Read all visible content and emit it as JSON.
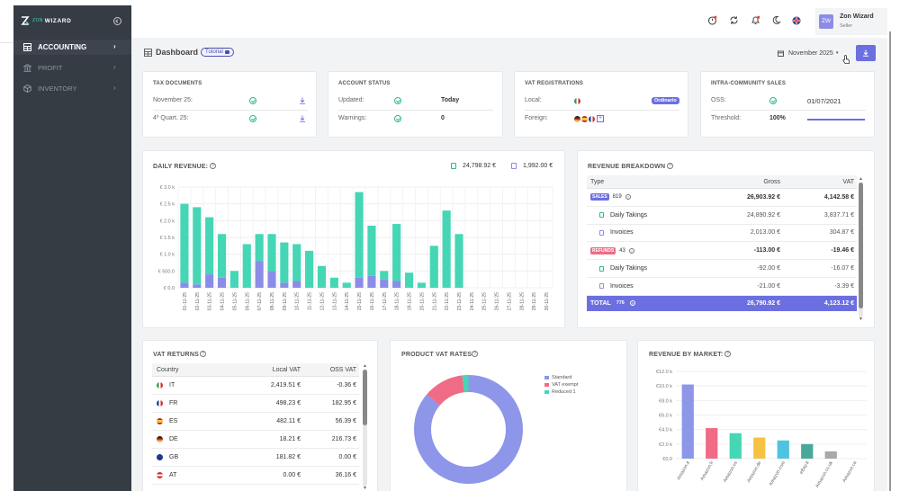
{
  "app": {
    "logo_text": "WIZARD",
    "logo_prefix": "ZON"
  },
  "sidebar": {
    "items": [
      {
        "label": "ACCOUNTING",
        "active": true
      },
      {
        "label": "PROFIT",
        "active": false
      },
      {
        "label": "INVENTORY",
        "active": false
      }
    ]
  },
  "header": {
    "user_initials": "ZW",
    "user_name": "Zon Wizard",
    "user_role": "Seller"
  },
  "page": {
    "title": "Dashboard",
    "tutorial": "Tutorial",
    "month": "November 2025"
  },
  "tax_documents": {
    "title": "TAX DOCUMENTS",
    "rows": [
      {
        "label": "November 25:"
      },
      {
        "label": "4º Quart. 25:"
      }
    ]
  },
  "account_status": {
    "title": "ACCOUNT STATUS",
    "rows": [
      {
        "label": "Updated:",
        "value": "Today"
      },
      {
        "label": "Warnings:",
        "value": "0"
      }
    ]
  },
  "vat_registrations": {
    "title": "VAT REGISTRATIONS",
    "local_label": "Local:",
    "local_badge": "Ordinario",
    "foreign_label": "Foreign:",
    "foreign_more": "+"
  },
  "intra_community": {
    "title": "INTRA-COMMUNITY SALES",
    "oss_label": "OSS:",
    "oss_value": "01/07/2021",
    "threshold_label": "Threshold:",
    "threshold_value": "100%",
    "threshold_fraction": 1.0
  },
  "daily_revenue": {
    "title": "DAILY REVENUE:",
    "total_label": "24,798.92 €",
    "invoices_label": "1,992.00 €",
    "colors": {
      "takings": "#45d6b5",
      "invoices": "#8b8ce8"
    }
  },
  "chart_data": [
    {
      "type": "bar",
      "title": "DAILY REVENUE:",
      "stacked": true,
      "categories": [
        "01-11-25",
        "02-11-25",
        "03-11-25",
        "04-11-25",
        "05-11-25",
        "06-11-25",
        "07-11-25",
        "08-11-25",
        "09-11-25",
        "10-11-25",
        "11-11-25",
        "12-11-25",
        "13-11-25",
        "14-11-25",
        "15-11-25",
        "16-11-25",
        "17-11-25",
        "18-11-25",
        "19-11-25",
        "20-11-25",
        "21-11-25",
        "22-11-25",
        "23-11-25",
        "24-11-25",
        "25-11-25",
        "26-11-25",
        "27-11-25",
        "28-11-25",
        "29-11-25",
        "30-11-25"
      ],
      "series": [
        {
          "name": "Invoices",
          "values": [
            150,
            100,
            400,
            300,
            0,
            0,
            800,
            500,
            150,
            200,
            0,
            0,
            0,
            0,
            300,
            350,
            250,
            200,
            0,
            0,
            0,
            0,
            0,
            0,
            0,
            0,
            0,
            0,
            0,
            0
          ]
        },
        {
          "name": "Daily Takings",
          "values": [
            2350,
            2300,
            1700,
            1300,
            500,
            1300,
            800,
            1100,
            1200,
            1100,
            1100,
            650,
            300,
            150,
            2550,
            1500,
            250,
            1700,
            450,
            150,
            1250,
            2300,
            1600,
            0,
            0,
            0,
            0,
            0,
            0,
            0
          ]
        }
      ],
      "y_ticks": [
        "€ 3.0 k",
        "€ 2.5 k",
        "€ 2.0 k",
        "€ 1.5 k",
        "€ 1.0 k",
        "€ 500.0",
        "€ 0.0"
      ],
      "ylim": [
        0,
        3000
      ]
    },
    {
      "type": "pie",
      "title": "PRODUCT VAT RATES",
      "categories": [
        "Standard",
        "VAT exempt",
        "Reduced 1"
      ],
      "values": [
        86,
        12,
        2
      ],
      "colors": [
        "#8d96e8",
        "#f06b85",
        "#45d6b5"
      ]
    },
    {
      "type": "bar",
      "title": "REVENUE BY MARKET:",
      "categories": [
        "Amazon.it",
        "Amazon.fr",
        "Amazon.es",
        "Amazon.de",
        "Amazon.com",
        "eBay.it",
        "Amazon.co.uk",
        "Amazon.ca"
      ],
      "values": [
        10200,
        4200,
        3500,
        2900,
        2500,
        2000,
        1000,
        0
      ],
      "colors": [
        "#8d96e8",
        "#f06b85",
        "#45d6b5",
        "#f5c242",
        "#4fc3e0",
        "#4aa89a",
        "#a9a9a9",
        "#cfd4e8"
      ],
      "y_ticks": [
        "€12.0 k",
        "€10.0 k",
        "€8.0 k",
        "€6.0 k",
        "€4.0 k",
        "€2.0 k",
        "€0.0"
      ],
      "ylim": [
        0,
        12000
      ]
    }
  ],
  "revenue_breakdown": {
    "title": "REVENUE BREAKDOWN",
    "headers": [
      "Type",
      "Gross",
      "VAT"
    ],
    "rows": [
      {
        "kind": "sales",
        "badge": "SALES",
        "count": "819",
        "gross": "26,903.92 €",
        "vat": "4,142.58 €"
      },
      {
        "kind": "sub",
        "label": "Daily Takings",
        "gross": "24,890.92 €",
        "vat": "3,837.71 €"
      },
      {
        "kind": "sub",
        "label": "Invoices",
        "gross": "2,013.00 €",
        "vat": "304.87 €"
      },
      {
        "kind": "refunds",
        "badge": "REFUNDS",
        "count": "43",
        "gross": "-113.00 €",
        "vat": "-19.46 €"
      },
      {
        "kind": "sub",
        "label": "Daily Takings",
        "gross": "-92.00 €",
        "vat": "-16.07 €"
      },
      {
        "kind": "sub",
        "label": "Invoices",
        "gross": "-21.00 €",
        "vat": "-3.39 €"
      }
    ],
    "total": {
      "label": "TOTAL",
      "count": "776",
      "gross": "26,790.92 €",
      "vat": "4,123.12 €"
    }
  },
  "vat_returns": {
    "title": "VAT RETURNS",
    "headers": [
      "Country",
      "Local VAT",
      "OSS VAT"
    ],
    "rows": [
      {
        "code": "IT",
        "local": "2,419.51 €",
        "oss": "-0.36 €"
      },
      {
        "code": "FR",
        "local": "498.23 €",
        "oss": "182.95 €"
      },
      {
        "code": "ES",
        "local": "482.11 €",
        "oss": "56.39 €"
      },
      {
        "code": "DE",
        "local": "18.21 €",
        "oss": "216.73 €"
      },
      {
        "code": "GB",
        "local": "181.82 €",
        "oss": "0.00 €"
      },
      {
        "code": "AT",
        "local": "0.00 €",
        "oss": "36.16 €"
      }
    ]
  },
  "product_vat": {
    "title": "PRODUCT VAT RATES",
    "legend": [
      "Standard",
      "VAT exempt",
      "Reduced 1"
    ]
  },
  "market": {
    "title": "REVENUE BY MARKET:"
  }
}
